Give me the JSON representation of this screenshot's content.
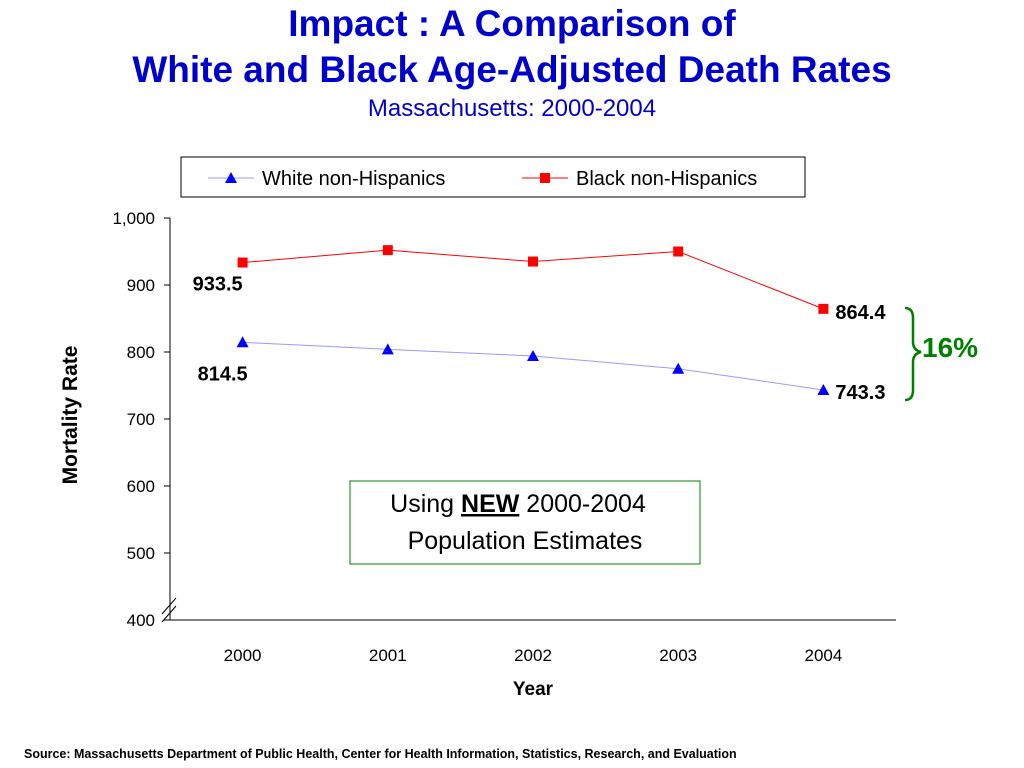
{
  "slide": {
    "title_line1": "Impact :  A Comparison of",
    "title_line2": "White and Black Age-Adjusted Death Rates",
    "subtitle": "Massachusetts: 2000-2004",
    "source": "Source:  Massachusetts Department of Public Health, Center for Health Information, Statistics, Research, and Evaluation"
  },
  "chart_data": {
    "type": "line",
    "title": "Impact :  A Comparison of White and Black Age-Adjusted Death Rates",
    "subtitle": "Massachusetts: 2000-2004",
    "xlabel": "Year",
    "ylabel": "Mortality Rate",
    "categories": [
      "2000",
      "2001",
      "2002",
      "2003",
      "2004"
    ],
    "ylim": [
      400,
      1000
    ],
    "yticks": [
      "400",
      "500",
      "600",
      "700",
      "800",
      "900",
      "1,000"
    ],
    "axis_break": true,
    "grid": false,
    "legend_position": "top",
    "series": [
      {
        "name": "White non-Hispanics",
        "marker": "triangle",
        "color": "#0000ff",
        "line_color": "#9999ff",
        "values": [
          814.5,
          804,
          794,
          775,
          743.3
        ]
      },
      {
        "name": "Black non-Hispanics",
        "marker": "square",
        "color": "#ff0000",
        "line_color": "#ff0000",
        "values": [
          933.5,
          952,
          935,
          950,
          864.4
        ]
      }
    ],
    "data_labels": [
      {
        "series": 0,
        "index": 0,
        "text": "814.5"
      },
      {
        "series": 0,
        "index": 4,
        "text": "743.3"
      },
      {
        "series": 1,
        "index": 0,
        "text": "933.5"
      },
      {
        "series": 1,
        "index": 4,
        "text": "864.4"
      }
    ],
    "annotations": {
      "bracket_label": "16%",
      "bracket_color": "#008000",
      "note_prefix": "Using ",
      "note_emphasis": "NEW",
      "note_suffix": " 2000-2004",
      "note_line2": "Population Estimates",
      "note_border_color": "#008000"
    }
  }
}
